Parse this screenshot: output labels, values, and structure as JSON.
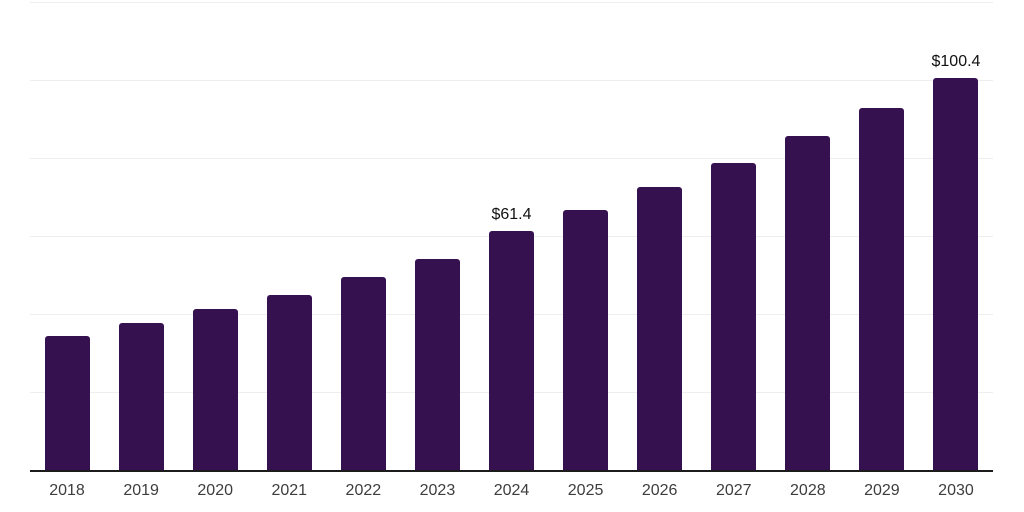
{
  "chart_data": {
    "type": "bar",
    "categories": [
      "2018",
      "2019",
      "2020",
      "2021",
      "2022",
      "2023",
      "2024",
      "2025",
      "2026",
      "2027",
      "2028",
      "2029",
      "2030"
    ],
    "values": [
      34.3,
      37.8,
      41.3,
      45.0,
      49.4,
      54.0,
      61.4,
      66.6,
      72.6,
      78.7,
      85.6,
      92.8,
      100.4
    ],
    "data_labels": {
      "2024": "$61.4",
      "2030": "$100.4"
    },
    "ylim": [
      0,
      120
    ],
    "gridline_step": 20,
    "grid": true,
    "legend": "none",
    "bar_color": "#361150",
    "gridline_color": "#eeeeee",
    "axis_line_color": "#1c1c1c",
    "tick_label_color": "#3d3d3d",
    "data_label_color": "#111111",
    "background": "#ffffff"
  }
}
